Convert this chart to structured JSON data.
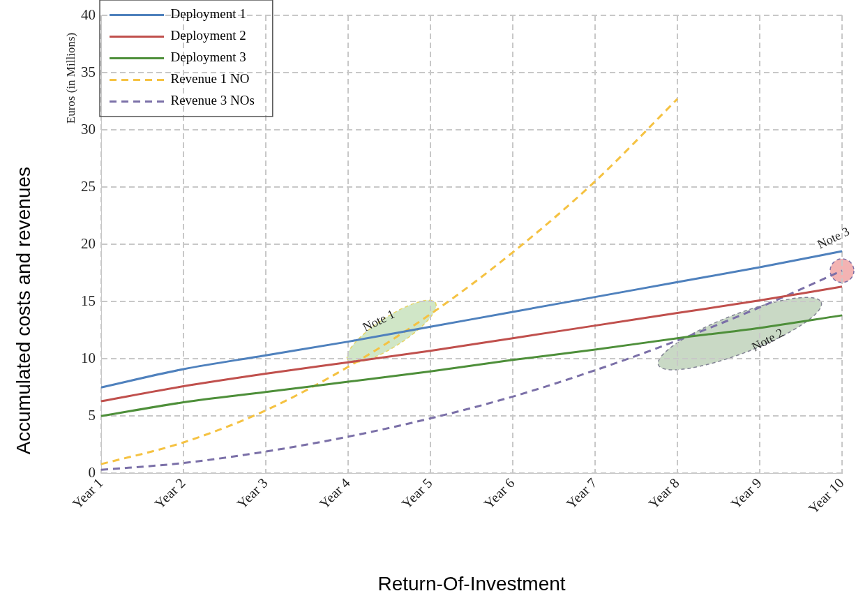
{
  "chart_data": {
    "type": "line",
    "ylabel": "Accumulated costs and revenues",
    "xlabel": "Return-Of-Investment",
    "categories": [
      "Year 1",
      "Year 2",
      "Year 3",
      "Year 4",
      "Year 5",
      "Year 6",
      "Year 7",
      "Year 8",
      "Year 9",
      "Year 10"
    ],
    "ylim": [
      0,
      40
    ],
    "yticks": [
      0,
      5,
      10,
      15,
      20,
      25,
      30,
      35,
      40
    ],
    "series": [
      {
        "name": "Deployment 1",
        "color": "#4f81bd",
        "line_style": "solid",
        "values": [
          7.5,
          9.1,
          10.3,
          11.5,
          12.8,
          14.1,
          15.4,
          16.7,
          18.0,
          19.4
        ]
      },
      {
        "name": "Deployment 2",
        "color": "#c0504d",
        "line_style": "solid",
        "values": [
          6.3,
          7.6,
          8.7,
          9.7,
          10.7,
          11.8,
          12.9,
          14.0,
          15.1,
          16.3
        ]
      },
      {
        "name": "Deployment 3",
        "color": "#4e8f3a",
        "line_style": "solid",
        "values": [
          5.0,
          6.2,
          7.1,
          8.0,
          8.9,
          9.9,
          10.8,
          11.8,
          12.7,
          13.8
        ]
      },
      {
        "name": "Revenue 1 NO",
        "color": "#f5c242",
        "line_style": "dashed",
        "values": [
          0.8,
          2.7,
          5.5,
          9.3,
          13.9,
          19.3,
          25.5,
          32.7,
          null,
          null
        ]
      },
      {
        "name": "Revenue 3 NOs",
        "color": "#7b70a8",
        "line_style": "dashed",
        "values": [
          0.3,
          0.9,
          1.9,
          3.2,
          4.8,
          6.7,
          9.0,
          11.6,
          14.5,
          17.7
        ]
      }
    ],
    "annotations": [
      "Euros (in Millions)",
      "Note 1",
      "Note 2",
      {
        "text": "Note 3",
        "x": "Year 10",
        "y": 17.7
      }
    ],
    "grid": true,
    "legend": "top left",
    "marker": "none"
  }
}
